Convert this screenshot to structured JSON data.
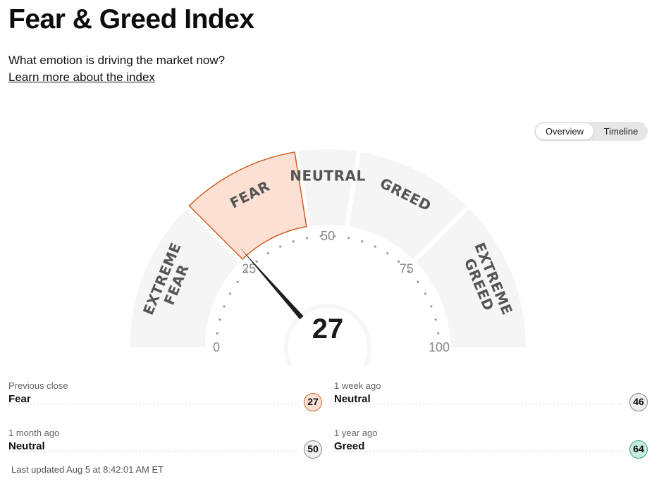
{
  "header": {
    "title": "Fear & Greed Index",
    "subtitle": "What emotion is driving the market now?",
    "learn_more": "Learn more about the index"
  },
  "view_toggle": {
    "options": [
      "Overview",
      "Timeline"
    ],
    "active": "Overview"
  },
  "chart_data": {
    "type": "gauge",
    "value": 27,
    "current_rating": "Fear",
    "scale": [
      0,
      100
    ],
    "tick_labels": [
      "0",
      "25",
      "50",
      "75",
      "100"
    ],
    "segments": [
      {
        "label": [
          "EXTREME",
          "FEAR"
        ],
        "range": [
          0,
          25
        ]
      },
      {
        "label": [
          "FEAR"
        ],
        "range": [
          25,
          45
        ]
      },
      {
        "label": [
          "NEUTRAL"
        ],
        "range": [
          45,
          55
        ]
      },
      {
        "label": [
          "GREED"
        ],
        "range": [
          55,
          75
        ]
      },
      {
        "label": [
          "EXTREME",
          "GREED"
        ],
        "range": [
          75,
          100
        ]
      }
    ],
    "active_segment": 1,
    "colors": {
      "segment": "#f5f5f5",
      "active_fill": "#fde0d4",
      "active_stroke": "#cf5c1e",
      "needle": "#1e1e1e",
      "label": "#555555",
      "tick": "#9a9a9a"
    }
  },
  "history": [
    {
      "label": "Previous close",
      "rating": "Fear",
      "value": "27",
      "status": "fear"
    },
    {
      "label": "1 week ago",
      "rating": "Neutral",
      "value": "46",
      "status": "neutral"
    },
    {
      "label": "1 month ago",
      "rating": "Neutral",
      "value": "50",
      "status": "neutral"
    },
    {
      "label": "1 year ago",
      "rating": "Greed",
      "value": "64",
      "status": "greed"
    }
  ],
  "footer": {
    "last_updated": "Last updated Aug 5 at 8:42:01 AM ET"
  }
}
